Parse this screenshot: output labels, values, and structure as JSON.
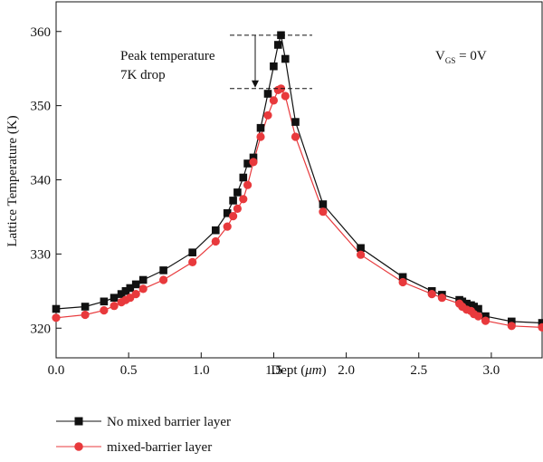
{
  "chart_data": {
    "type": "line",
    "xlabel_prefix": "Dept (",
    "xlabel_unit": "μm",
    "xlabel_suffix": ")",
    "ylabel": "Lattice Temperature (K)",
    "xlim": [
      0.0,
      3.35
    ],
    "ylim": [
      316,
      364
    ],
    "xticks": [
      0.0,
      0.5,
      1.0,
      1.5,
      2.0,
      2.5,
      3.0
    ],
    "xtick_labels": [
      "0.0",
      "0.5",
      "1.0",
      "1.5",
      "2.0",
      "2.5",
      "3.0"
    ],
    "yticks": [
      320,
      330,
      340,
      350,
      360
    ],
    "ytick_labels": [
      "320",
      "330",
      "340",
      "350",
      "360"
    ],
    "annotations": {
      "peak_line1": "Peak temperature",
      "peak_line2": "7K drop",
      "vgs_main": "V",
      "vgs_sub": "GS",
      "vgs_value": " = 0V",
      "peak_upper": 359.5,
      "peak_lower": 352.3
    },
    "legend_position": "bottom-left",
    "series": [
      {
        "name": "No mixed barrier layer",
        "color": "#111111",
        "marker": "square",
        "x": [
          0.0,
          0.2,
          0.33,
          0.4,
          0.45,
          0.48,
          0.51,
          0.55,
          0.6,
          0.74,
          0.94,
          1.1,
          1.18,
          1.22,
          1.25,
          1.29,
          1.32,
          1.36,
          1.41,
          1.46,
          1.5,
          1.53,
          1.55,
          1.58,
          1.65,
          1.84,
          2.1,
          2.39,
          2.59,
          2.66,
          2.78,
          2.8,
          2.83,
          2.86,
          2.88,
          2.91,
          2.96,
          3.14,
          3.35
        ],
        "y": [
          322.6,
          322.9,
          323.6,
          324.1,
          324.6,
          325.0,
          325.4,
          325.9,
          326.5,
          327.8,
          330.2,
          333.2,
          335.5,
          337.2,
          338.3,
          340.3,
          342.2,
          343.0,
          347.0,
          351.6,
          355.3,
          358.2,
          359.5,
          356.3,
          347.8,
          336.7,
          330.8,
          326.9,
          325.0,
          324.5,
          323.8,
          323.6,
          323.3,
          323.1,
          322.9,
          322.6,
          321.6,
          320.9,
          320.7
        ],
        "marker_x": [
          0.0,
          0.2,
          0.33,
          0.4,
          0.45,
          0.48,
          0.51,
          0.55,
          0.6,
          0.74,
          0.94,
          1.1,
          1.18,
          1.22,
          1.25,
          1.29,
          1.32,
          1.36,
          1.41,
          1.46,
          1.5,
          1.53,
          1.55,
          1.58,
          1.65,
          1.84,
          2.1,
          2.39,
          2.59,
          2.66,
          2.78,
          2.8,
          2.83,
          2.86,
          2.88,
          2.91,
          2.96,
          3.14,
          3.35
        ],
        "marker_y": [
          322.6,
          322.9,
          323.6,
          324.1,
          324.6,
          325.0,
          325.4,
          325.9,
          326.5,
          327.8,
          330.2,
          333.2,
          335.5,
          337.2,
          338.3,
          340.3,
          342.2,
          343.0,
          347.0,
          351.6,
          355.3,
          358.2,
          359.5,
          356.3,
          347.8,
          336.7,
          330.8,
          326.9,
          325.0,
          324.5,
          323.8,
          323.6,
          323.3,
          323.1,
          322.9,
          322.6,
          321.6,
          320.9,
          320.7
        ]
      },
      {
        "name": "mixed-barrier layer",
        "color": "#e8393c",
        "marker": "circle",
        "x": [
          0.0,
          0.2,
          0.33,
          0.4,
          0.45,
          0.48,
          0.51,
          0.55,
          0.6,
          0.74,
          0.94,
          1.1,
          1.18,
          1.22,
          1.25,
          1.29,
          1.32,
          1.36,
          1.41,
          1.46,
          1.5,
          1.53,
          1.55,
          1.58,
          1.65,
          1.84,
          2.1,
          2.39,
          2.59,
          2.66,
          2.78,
          2.8,
          2.83,
          2.86,
          2.88,
          2.91,
          2.96,
          3.14,
          3.35
        ],
        "y": [
          321.4,
          321.8,
          322.4,
          323.0,
          323.5,
          323.8,
          324.1,
          324.6,
          325.3,
          326.5,
          328.9,
          331.7,
          333.7,
          335.1,
          336.1,
          337.4,
          339.3,
          342.4,
          345.8,
          348.7,
          350.7,
          352.1,
          352.3,
          351.3,
          345.8,
          335.7,
          329.9,
          326.2,
          324.6,
          324.1,
          323.3,
          322.9,
          322.5,
          322.3,
          321.9,
          321.6,
          321.0,
          320.3,
          320.1
        ],
        "marker_x": [
          0.0,
          0.2,
          0.33,
          0.4,
          0.45,
          0.48,
          0.51,
          0.55,
          0.6,
          0.74,
          0.94,
          1.1,
          1.18,
          1.22,
          1.25,
          1.29,
          1.32,
          1.36,
          1.41,
          1.46,
          1.5,
          1.53,
          1.55,
          1.58,
          1.65,
          1.84,
          2.1,
          2.39,
          2.59,
          2.66,
          2.78,
          2.8,
          2.83,
          2.86,
          2.88,
          2.91,
          2.96,
          3.14,
          3.35
        ],
        "marker_y": [
          321.4,
          321.8,
          322.4,
          323.0,
          323.5,
          323.8,
          324.1,
          324.6,
          325.3,
          326.5,
          328.9,
          331.7,
          333.7,
          335.1,
          336.1,
          337.4,
          339.3,
          342.4,
          345.8,
          348.7,
          350.7,
          352.1,
          352.3,
          351.3,
          345.8,
          335.7,
          329.9,
          326.2,
          324.6,
          324.1,
          323.3,
          322.9,
          322.5,
          322.3,
          321.9,
          321.6,
          321.0,
          320.3,
          320.1
        ]
      }
    ]
  }
}
